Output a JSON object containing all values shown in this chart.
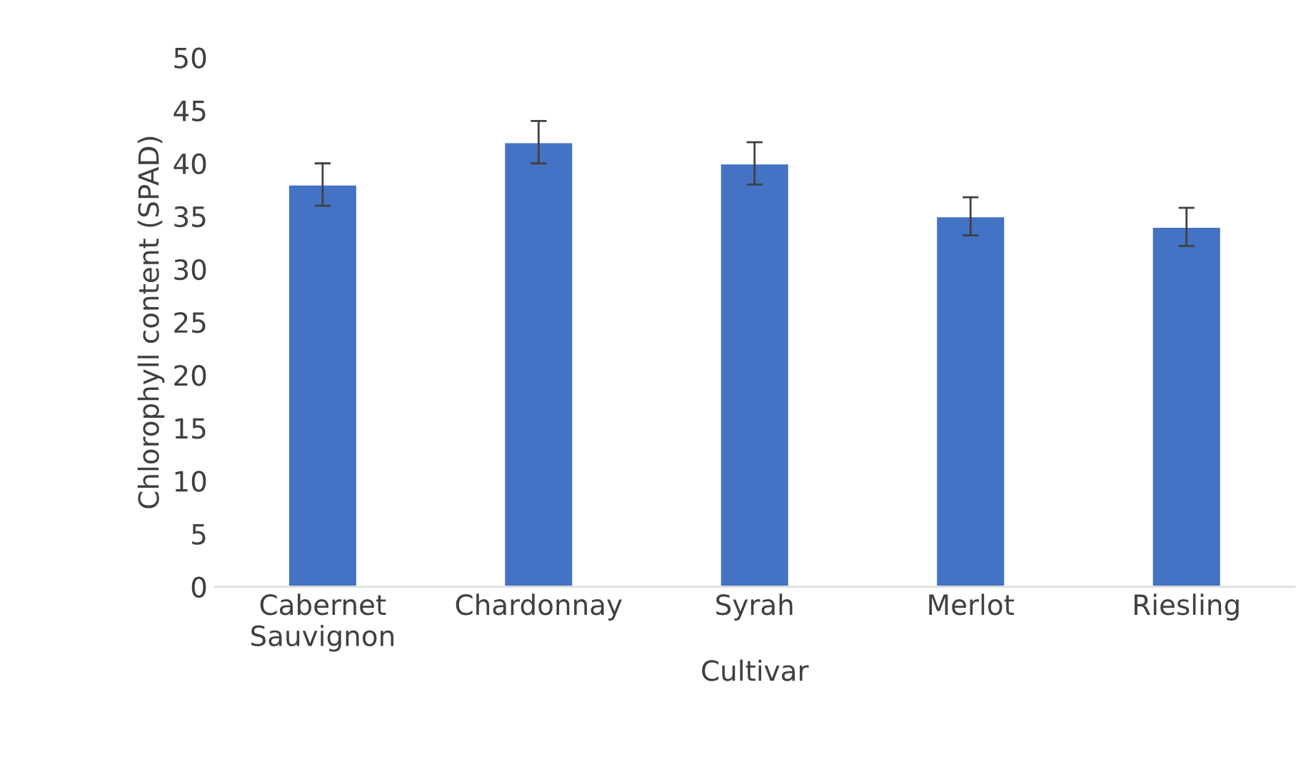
{
  "chart_data": {
    "type": "bar",
    "xlabel": "Cultivar",
    "ylabel": "Chlorophyll content (SPAD)",
    "categories": [
      "Cabernet\nSauvignon",
      "Chardonnay",
      "Syrah",
      "Merlot",
      "Riesling"
    ],
    "values": [
      38,
      42,
      40,
      35,
      34
    ],
    "errors": [
      2,
      2,
      2,
      1.8,
      1.8
    ],
    "color": "#4472c4",
    "ylim": [
      0,
      50
    ],
    "yticks": [
      0,
      5,
      10,
      15,
      20,
      25,
      30,
      35,
      40,
      45,
      50
    ],
    "grid": false,
    "legend": false
  }
}
